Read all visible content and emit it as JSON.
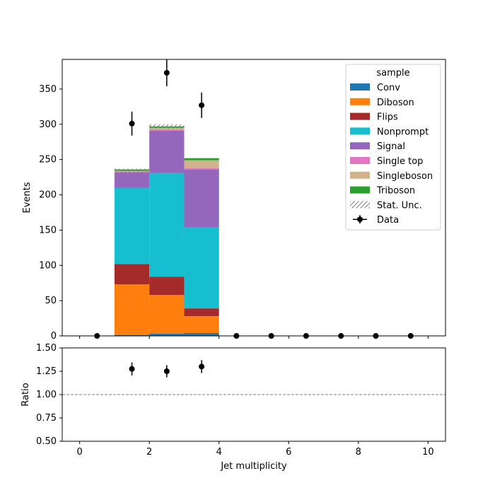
{
  "chart_data": [
    {
      "type": "bar",
      "stacked": true,
      "x_edges": [
        -0.5,
        0.5,
        1.5,
        2.5,
        3.5,
        4.5,
        5.5,
        6.5,
        7.5,
        8.5,
        9.5,
        10.5
      ],
      "bins": [
        {
          "lo": 1,
          "hi": 2,
          "Conv": 1,
          "Diboson": 72,
          "Flips": 29,
          "Nonprompt": 108,
          "Signal": 22,
          "Single top": 1,
          "Singleboson": 1,
          "Triboson": 2
        },
        {
          "lo": 2,
          "hi": 3,
          "Conv": 3,
          "Diboson": 55,
          "Flips": 26,
          "Nonprompt": 147,
          "Signal": 60,
          "Single top": 2,
          "Singleboson": 2,
          "Triboson": 2
        },
        {
          "lo": 3,
          "hi": 4,
          "Conv": 4,
          "Diboson": 24,
          "Flips": 11,
          "Nonprompt": 115,
          "Signal": 82,
          "Single top": 2,
          "Singleboson": 11,
          "Triboson": 3
        }
      ],
      "series": [
        {
          "name": "Conv",
          "color": "#1f77b4"
        },
        {
          "name": "Diboson",
          "color": "#ff7f0e"
        },
        {
          "name": "Flips",
          "color": "#a52a2a"
        },
        {
          "name": "Nonprompt",
          "color": "#17becf"
        },
        {
          "name": "Signal",
          "color": "#9467bd"
        },
        {
          "name": "Single top",
          "color": "#e377c2"
        },
        {
          "name": "Singleboson",
          "color": "#d2b48c"
        },
        {
          "name": "Triboson",
          "color": "#2ca02c"
        }
      ],
      "stat_unc": [
        {
          "lo": 1,
          "hi": 2,
          "down": 233,
          "up": 237
        },
        {
          "lo": 2,
          "hi": 3,
          "down": 294,
          "up": 300
        }
      ],
      "data": {
        "name": "Data",
        "x": [
          0.5,
          1.5,
          2.5,
          3.5,
          4.5,
          5.5,
          6.5,
          7.5,
          8.5,
          9.5
        ],
        "y": [
          0,
          301,
          373,
          327,
          0,
          0,
          0,
          0,
          0,
          0
        ],
        "err": [
          0,
          17,
          19,
          18,
          0,
          0,
          0,
          0,
          0,
          0
        ]
      },
      "stat_unc_label": "Stat. Unc.",
      "legend_title": "sample",
      "legend_position": "top-right",
      "xlim": [
        -0.5,
        10.5
      ],
      "ylim": [
        0,
        392
      ],
      "xlabel": "",
      "ylabel": "Events",
      "yticks": [
        0,
        50,
        100,
        150,
        200,
        250,
        300,
        350
      ],
      "grid": false
    },
    {
      "type": "scatter",
      "x": [
        1.5,
        2.5,
        3.5
      ],
      "y": [
        1.275,
        1.25,
        1.3
      ],
      "err": [
        0.07,
        0.065,
        0.07
      ],
      "reference_line": 1.0,
      "xlim": [
        -0.5,
        10.5
      ],
      "ylim": [
        0.5,
        1.5
      ],
      "xlabel": "Jet multiplicity",
      "ylabel": "Ratio",
      "xticks": [
        0,
        2,
        4,
        6,
        8,
        10
      ],
      "yticks": [
        "0.50",
        "0.75",
        "1.00",
        "1.25",
        "1.50"
      ],
      "grid": false
    }
  ]
}
